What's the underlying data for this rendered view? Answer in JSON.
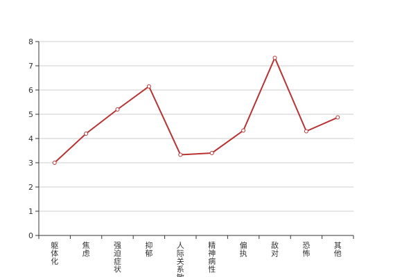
{
  "chart_data": {
    "type": "line",
    "title": "",
    "xlabel": "",
    "ylabel": "",
    "categories": [
      "躯体化",
      "焦虑",
      "强迫症状",
      "抑郁",
      "人际关系敏感",
      "精神病性",
      "偏执",
      "敌对",
      "恐怖",
      "其他"
    ],
    "series": [
      {
        "values": [
          3.0,
          4.2,
          5.2,
          6.15,
          3.33,
          3.4,
          4.33,
          7.33,
          4.3,
          4.87
        ]
      }
    ],
    "ylim": [
      0,
      8
    ],
    "yticks": [
      "0",
      "1",
      "2",
      "3",
      "4",
      "5",
      "6",
      "7",
      "8"
    ],
    "grid": true,
    "colors": {
      "line": "#b83232",
      "grid": "#cccccc",
      "axis": "#333333"
    }
  }
}
